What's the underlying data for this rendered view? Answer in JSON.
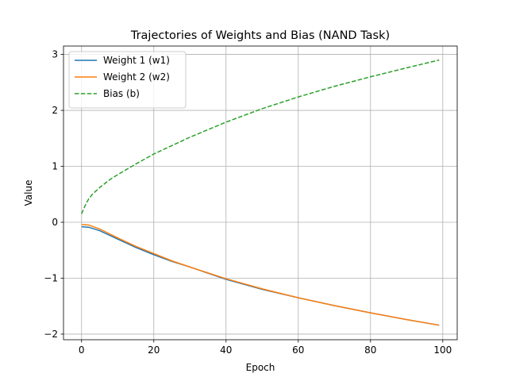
{
  "chart_data": {
    "type": "line",
    "title": "Trajectories of Weights and Bias (NAND Task)",
    "xlabel": "Epoch",
    "ylabel": "Value",
    "xlim": [
      -5,
      104
    ],
    "ylim": [
      -2.1,
      3.15
    ],
    "xticks": [
      0,
      20,
      40,
      60,
      80,
      100
    ],
    "yticks": [
      -2,
      -1,
      0,
      1,
      2,
      3
    ],
    "xtick_labels": [
      "0",
      "20",
      "40",
      "60",
      "80",
      "100"
    ],
    "ytick_labels": [
      "−2",
      "−1",
      "0",
      "1",
      "2",
      "3"
    ],
    "grid": true,
    "legend_position": "upper left",
    "series": [
      {
        "name": "Weight 1 (w1)",
        "color": "#1f77b4",
        "dash": "solid",
        "x": [
          0,
          2,
          5,
          10,
          15,
          20,
          25,
          30,
          40,
          50,
          60,
          70,
          80,
          90,
          99
        ],
        "y": [
          -0.08,
          -0.09,
          -0.15,
          -0.3,
          -0.45,
          -0.58,
          -0.7,
          -0.8,
          -1.02,
          -1.2,
          -1.35,
          -1.49,
          -1.62,
          -1.74,
          -1.84
        ]
      },
      {
        "name": "Weight 2 (w2)",
        "color": "#ff7f0e",
        "dash": "solid",
        "x": [
          0,
          2,
          5,
          10,
          15,
          20,
          25,
          30,
          40,
          50,
          60,
          70,
          80,
          90,
          99
        ],
        "y": [
          -0.04,
          -0.05,
          -0.12,
          -0.28,
          -0.43,
          -0.56,
          -0.69,
          -0.8,
          -1.01,
          -1.19,
          -1.35,
          -1.49,
          -1.62,
          -1.74,
          -1.84
        ]
      },
      {
        "name": "Bias (b)",
        "color": "#2ca02c",
        "dash": "dashed",
        "x": [
          0,
          1,
          2,
          3,
          5,
          8,
          10,
          15,
          20,
          25,
          30,
          40,
          50,
          60,
          70,
          80,
          90,
          99
        ],
        "y": [
          0.15,
          0.3,
          0.42,
          0.5,
          0.62,
          0.77,
          0.85,
          1.04,
          1.22,
          1.37,
          1.52,
          1.79,
          2.03,
          2.24,
          2.43,
          2.6,
          2.76,
          2.9
        ]
      }
    ]
  }
}
